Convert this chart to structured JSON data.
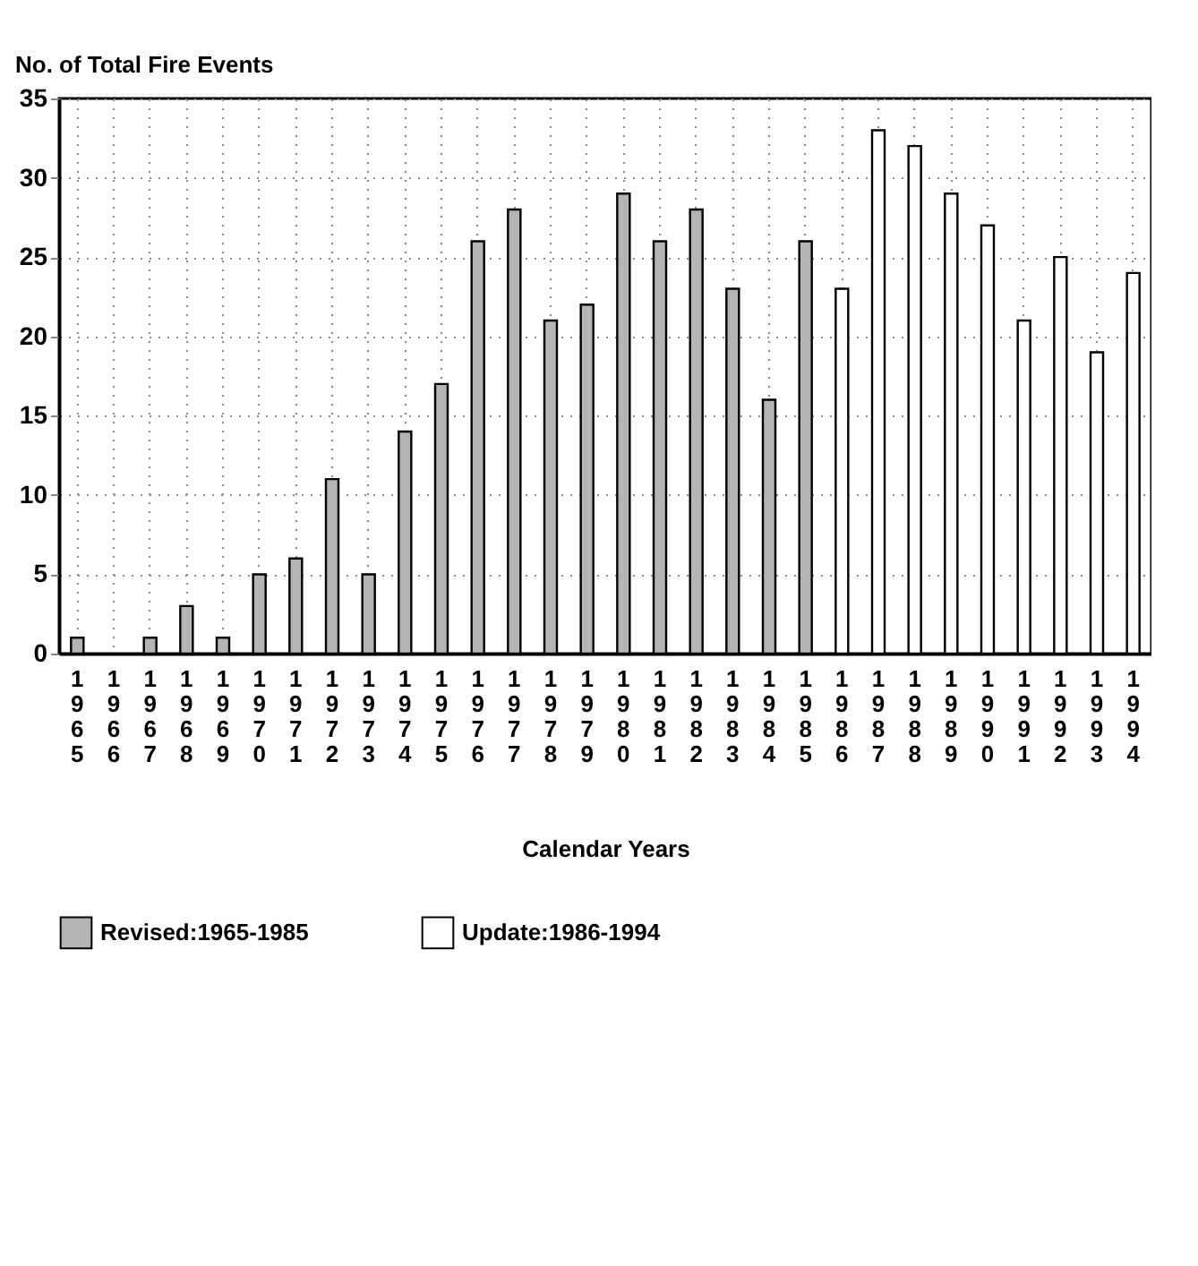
{
  "chart_data": {
    "type": "bar",
    "ylabel": "No. of Total Fire Events",
    "xlabel": "Calendar Years",
    "categories": [
      "1965",
      "1966",
      "1967",
      "1968",
      "1969",
      "1970",
      "1971",
      "1972",
      "1973",
      "1974",
      "1975",
      "1976",
      "1977",
      "1978",
      "1979",
      "1980",
      "1981",
      "1982",
      "1983",
      "1984",
      "1985",
      "1986",
      "1987",
      "1988",
      "1989",
      "1990",
      "1991",
      "1992",
      "1993",
      "1994"
    ],
    "series": [
      {
        "name": "Revised:1965-1985",
        "color": "#b4b4b4",
        "values": [
          1,
          0,
          1,
          3,
          1,
          5,
          6,
          11,
          5,
          14,
          17,
          26,
          28,
          21,
          22,
          29,
          26,
          28,
          23,
          16,
          26,
          null,
          null,
          null,
          null,
          null,
          null,
          null,
          null,
          null
        ]
      },
      {
        "name": "Update:1986-1994",
        "color": "#ffffff",
        "values": [
          null,
          null,
          null,
          null,
          null,
          null,
          null,
          null,
          null,
          null,
          null,
          null,
          null,
          null,
          null,
          null,
          null,
          null,
          null,
          null,
          null,
          23,
          33,
          32,
          29,
          27,
          21,
          25,
          19,
          24
        ]
      }
    ],
    "ylim": [
      0,
      35
    ],
    "yticks": [
      0,
      5,
      10,
      15,
      20,
      25,
      30,
      35
    ],
    "grid": true,
    "legend": "bottom"
  }
}
